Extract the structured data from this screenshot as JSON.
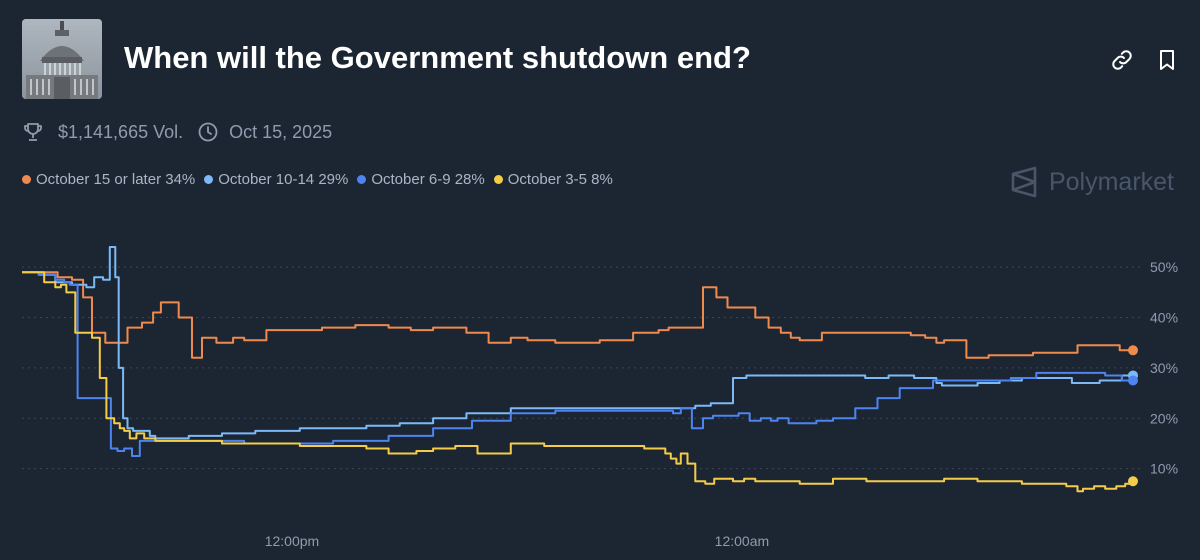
{
  "header": {
    "title": "When will the Government shutdown end?",
    "volume": "$1,141,665 Vol.",
    "date": "Oct 15, 2025",
    "brand": "Polymarket"
  },
  "colors": {
    "background": "#1c2633",
    "grid": "#3a4658",
    "axis_text": "#8f9cae"
  },
  "chart_data": {
    "type": "line",
    "title": "When will the Government shutdown end?",
    "xlabel": "",
    "ylabel": "",
    "ylim": [
      0,
      55
    ],
    "yticks": [
      10,
      20,
      30,
      40,
      50
    ],
    "ytick_labels": [
      "10%",
      "20%",
      "30%",
      "40%",
      "50%"
    ],
    "xlim": [
      0,
      100
    ],
    "xtick_positions": [
      24.3,
      64.8
    ],
    "xtick_labels": [
      "12:00pm",
      "12:00am"
    ],
    "series": [
      {
        "name": "October 15 or later",
        "label": "October 15 or later 34%",
        "color": "#f0894d",
        "x": [
          0,
          2,
          3.2,
          4.5,
          5.5,
          6.3,
          7.5,
          8.3,
          9.5,
          10.8,
          11.8,
          12.5,
          13.2,
          14.1,
          15.3,
          16.2,
          17.5,
          19,
          20,
          22,
          24,
          27,
          30,
          33,
          35,
          37,
          38.5,
          40,
          42,
          44,
          45.5,
          48,
          52,
          55,
          57.3,
          58.2,
          59.2,
          60,
          61.3,
          62.5,
          63.5,
          66,
          67.2,
          68.3,
          69.2,
          70,
          72,
          74,
          77,
          80,
          81.3,
          82.3,
          83,
          85,
          87,
          89,
          91,
          93,
          95,
          97,
          98.8,
          100
        ],
        "y": [
          49,
          49,
          48,
          47.5,
          44,
          37,
          35,
          35,
          38,
          39,
          41,
          43,
          43,
          40,
          32,
          36,
          35,
          36,
          35.5,
          37.5,
          37.5,
          38,
          38.5,
          38,
          37.5,
          38,
          38,
          37,
          35,
          36,
          35.5,
          35,
          35.5,
          37,
          37.5,
          38,
          38,
          38,
          46,
          44,
          42,
          40,
          38,
          37,
          36,
          35.5,
          37,
          37,
          37,
          36.5,
          36,
          35,
          35.5,
          32,
          32.5,
          32.5,
          33,
          33,
          34.5,
          34.5,
          33.5,
          33.5
        ]
      },
      {
        "name": "October 10-14",
        "label": "October 10-14 29%",
        "color": "#7cb9f6",
        "x": [
          0,
          1.5,
          3,
          4.5,
          5.8,
          6.5,
          7.3,
          7.9,
          8.4,
          8.7,
          9.1,
          9.5,
          10,
          10.6,
          11.5,
          12,
          13,
          15,
          18,
          21,
          25,
          28,
          31,
          34,
          37,
          40,
          44,
          50,
          55,
          57,
          58.5,
          59.2,
          59.8,
          60.6,
          61.2,
          62,
          63.3,
          64,
          65.2,
          66,
          72,
          75.3,
          75.9,
          77,
          78,
          80.3,
          82.3,
          82.8,
          83.1,
          84,
          86,
          88,
          90,
          92,
          93.4,
          94.5,
          97,
          99,
          100
        ],
        "y": [
          49,
          48.5,
          47,
          46.5,
          46,
          48,
          47.5,
          54,
          48,
          30,
          20,
          18,
          17.5,
          17.5,
          16.5,
          16,
          16,
          16.5,
          17,
          17.5,
          18,
          18,
          18.5,
          19,
          20,
          21,
          22,
          22,
          22,
          22,
          22,
          22,
          22,
          22.5,
          22.5,
          23,
          23,
          28,
          28.5,
          28.5,
          28.5,
          28.5,
          28,
          28,
          28.5,
          28,
          27,
          26.5,
          26.5,
          26.5,
          27,
          27.5,
          28,
          28,
          28,
          27,
          27.5,
          28.5,
          28.5
        ]
      },
      {
        "name": "October 6-9",
        "label": "October 6-9 28%",
        "color": "#4d84f0",
        "x": [
          0,
          1.5,
          3,
          3.8,
          4.3,
          5,
          6,
          7,
          8,
          8.6,
          9.2,
          9.9,
          10.6,
          11.2,
          12,
          13,
          16,
          20,
          24,
          28,
          33,
          37,
          40.5,
          44,
          48,
          52,
          55,
          57,
          58.2,
          58.6,
          59.3,
          60.3,
          61.3,
          62.2,
          63.3,
          64.5,
          65.5,
          66.5,
          67.4,
          68,
          69,
          70,
          71.5,
          73,
          75,
          77,
          79,
          82,
          85,
          89,
          91.3,
          93,
          95.5,
          97.5,
          99,
          100
        ],
        "y": [
          49,
          48.5,
          47.5,
          47,
          46.5,
          24,
          24,
          24,
          14,
          13.5,
          14,
          12.5,
          15.5,
          15.5,
          15.5,
          15.5,
          15.5,
          15,
          15,
          15.5,
          16.5,
          18,
          19.5,
          21,
          21.5,
          21.5,
          21.5,
          21.5,
          21.5,
          21,
          22,
          18,
          20,
          20.5,
          20.5,
          21,
          19.5,
          20,
          19.5,
          20,
          19,
          19,
          19.5,
          20,
          22,
          24,
          26,
          27.5,
          27.5,
          28,
          29,
          29,
          29,
          28.5,
          27.5,
          27.5
        ]
      },
      {
        "name": "October 3-5",
        "label": "October 3-5 8%",
        "color": "#f5cc47",
        "x": [
          0,
          1,
          2,
          3,
          3.5,
          4,
          4.8,
          5.5,
          6.3,
          7,
          7.6,
          8.3,
          8.8,
          9.2,
          9.7,
          10.3,
          11,
          12,
          14,
          16,
          18,
          21,
          25,
          27,
          29,
          31,
          33,
          35.5,
          37,
          39,
          41,
          44,
          47,
          50,
          52,
          54,
          56,
          57.2,
          57.9,
          58.4,
          58.9,
          59.3,
          59.9,
          60.6,
          61.5,
          62.3,
          64,
          65,
          66,
          67.5,
          70,
          73,
          76,
          80,
          83,
          86,
          88,
          90,
          92,
          94,
          95,
          95.5,
          96.5,
          97.5,
          98.5,
          99.3,
          100
        ],
        "y": [
          49,
          49,
          47,
          46,
          46.5,
          45,
          37,
          37,
          36,
          28,
          20,
          19,
          18,
          17.5,
          16,
          17,
          16,
          15.5,
          15.5,
          15.5,
          15,
          15,
          14.5,
          14.5,
          14.5,
          14,
          13,
          13.5,
          14,
          14.5,
          13,
          15,
          14.5,
          14.5,
          14.5,
          14.5,
          14,
          14,
          13,
          12,
          11,
          13,
          11,
          7.5,
          7,
          8,
          7.5,
          8,
          7.5,
          7.5,
          7,
          8,
          7.5,
          7.5,
          8,
          7.5,
          7.5,
          7,
          7,
          6.5,
          5.5,
          6,
          6.5,
          6,
          6.5,
          7,
          7.5
        ]
      }
    ]
  }
}
